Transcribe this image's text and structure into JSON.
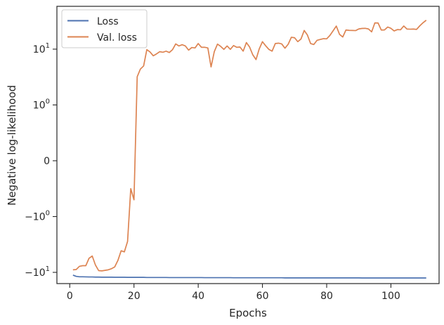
{
  "chart_data": {
    "type": "line",
    "xlabel": "Epochs",
    "ylabel": "Negative log-likelihood",
    "xlim": [
      -4,
      115
    ],
    "yscale": "symlog",
    "y_ticks": [
      {
        "label": "−10",
        "exp": "1",
        "value": -10
      },
      {
        "label": "−10",
        "exp": "0",
        "value": -1
      },
      {
        "label": "0",
        "exp": "",
        "value": 0
      },
      {
        "label": "10",
        "exp": "0",
        "value": 1
      },
      {
        "label": "10",
        "exp": "1",
        "value": 10
      }
    ],
    "x_ticks": [
      0,
      20,
      40,
      60,
      80,
      100
    ],
    "grid": false,
    "legend": "top-left",
    "x": [
      1,
      2,
      3,
      4,
      5,
      6,
      7,
      8,
      9,
      10,
      11,
      12,
      13,
      14,
      15,
      16,
      17,
      18,
      19,
      20,
      21,
      22,
      23,
      24,
      25,
      26,
      27,
      28,
      29,
      30,
      31,
      32,
      33,
      34,
      35,
      36,
      37,
      38,
      39,
      40,
      41,
      42,
      43,
      44,
      45,
      46,
      47,
      48,
      49,
      50,
      51,
      52,
      53,
      54,
      55,
      56,
      57,
      58,
      59,
      60,
      61,
      62,
      63,
      64,
      65,
      66,
      67,
      68,
      69,
      70,
      71,
      72,
      73,
      74,
      75,
      76,
      77,
      78,
      79,
      80,
      81,
      82,
      83,
      84,
      85,
      86,
      87,
      88,
      89,
      90,
      91,
      92,
      93,
      94,
      95,
      96,
      97,
      98,
      99,
      100,
      101,
      102,
      103,
      104,
      105,
      106,
      107,
      108,
      109,
      110,
      111
    ],
    "series": [
      {
        "name": "Loss",
        "color": "#4c72b0",
        "values": [
          -11.2,
          -11.8,
          -12.0,
          -12.0,
          -12.05,
          -12.1,
          -12.1,
          -12.15,
          -12.15,
          -12.2,
          -12.2,
          -12.2,
          -12.2,
          -12.25,
          -12.25,
          -12.25,
          -12.25,
          -12.3,
          -12.3,
          -12.3,
          -12.3,
          -12.3,
          -12.3,
          -12.35,
          -12.35,
          -12.35,
          -12.35,
          -12.35,
          -12.35,
          -12.35,
          -12.4,
          -12.4,
          -12.4,
          -12.4,
          -12.4,
          -12.4,
          -12.4,
          -12.4,
          -12.4,
          -12.4,
          -12.4,
          -12.45,
          -12.45,
          -12.45,
          -12.45,
          -12.45,
          -12.45,
          -12.45,
          -12.45,
          -12.45,
          -12.5,
          -12.5,
          -12.5,
          -12.5,
          -12.5,
          -12.5,
          -12.5,
          -12.5,
          -12.5,
          -12.5,
          -12.5,
          -12.5,
          -12.5,
          -12.5,
          -12.5,
          -12.5,
          -12.55,
          -12.55,
          -12.55,
          -12.55,
          -12.55,
          -12.55,
          -12.55,
          -12.55,
          -12.55,
          -12.55,
          -12.55,
          -12.55,
          -12.55,
          -12.55,
          -12.55,
          -12.55,
          -12.55,
          -12.55,
          -12.55,
          -12.55,
          -12.55,
          -12.55,
          -12.55,
          -12.55,
          -12.6,
          -12.6,
          -12.6,
          -12.6,
          -12.6,
          -12.6,
          -12.6,
          -12.6,
          -12.6,
          -12.6,
          -12.6,
          -12.6,
          -12.6,
          -12.6,
          -12.6,
          -12.6,
          -12.6,
          -12.6,
          -12.6,
          -12.6,
          -12.6
        ]
      },
      {
        "name": "Val. loss",
        "color": "#dd8452",
        "values": [
          -9.0,
          -8.9,
          -7.8,
          -7.6,
          -7.6,
          -5.6,
          -5.1,
          -7.4,
          -9.3,
          -9.4,
          -9.2,
          -9.0,
          -8.6,
          -8.0,
          -6.1,
          -4.1,
          -4.3,
          -2.8,
          -0.5,
          -0.7,
          3.2,
          4.4,
          5.0,
          9.8,
          8.9,
          7.6,
          8.2,
          9.0,
          8.8,
          9.2,
          8.7,
          9.8,
          12.4,
          11.4,
          12.0,
          11.4,
          9.6,
          10.7,
          10.5,
          12.6,
          10.8,
          10.8,
          10.5,
          4.8,
          9.0,
          12.3,
          11.2,
          9.9,
          11.4,
          9.9,
          11.6,
          10.8,
          10.9,
          9.2,
          13.1,
          10.9,
          7.9,
          6.5,
          10.1,
          13.6,
          11.5,
          9.9,
          9.2,
          12.6,
          12.8,
          12.4,
          10.4,
          12.2,
          16.3,
          16.0,
          13.6,
          15.2,
          21.6,
          17.9,
          12.6,
          12.1,
          14.4,
          14.9,
          15.4,
          15.3,
          17.6,
          21.3,
          25.9,
          18.4,
          16.5,
          22.0,
          21.7,
          21.6,
          21.5,
          23.0,
          23.5,
          23.6,
          23.0,
          20.4,
          29.5,
          29.4,
          22.0,
          22.1,
          24.9,
          23.6,
          21.2,
          22.4,
          22.2,
          26.0,
          22.9,
          22.8,
          22.9,
          22.6,
          26.2,
          29.7,
          33.0
        ]
      }
    ]
  }
}
